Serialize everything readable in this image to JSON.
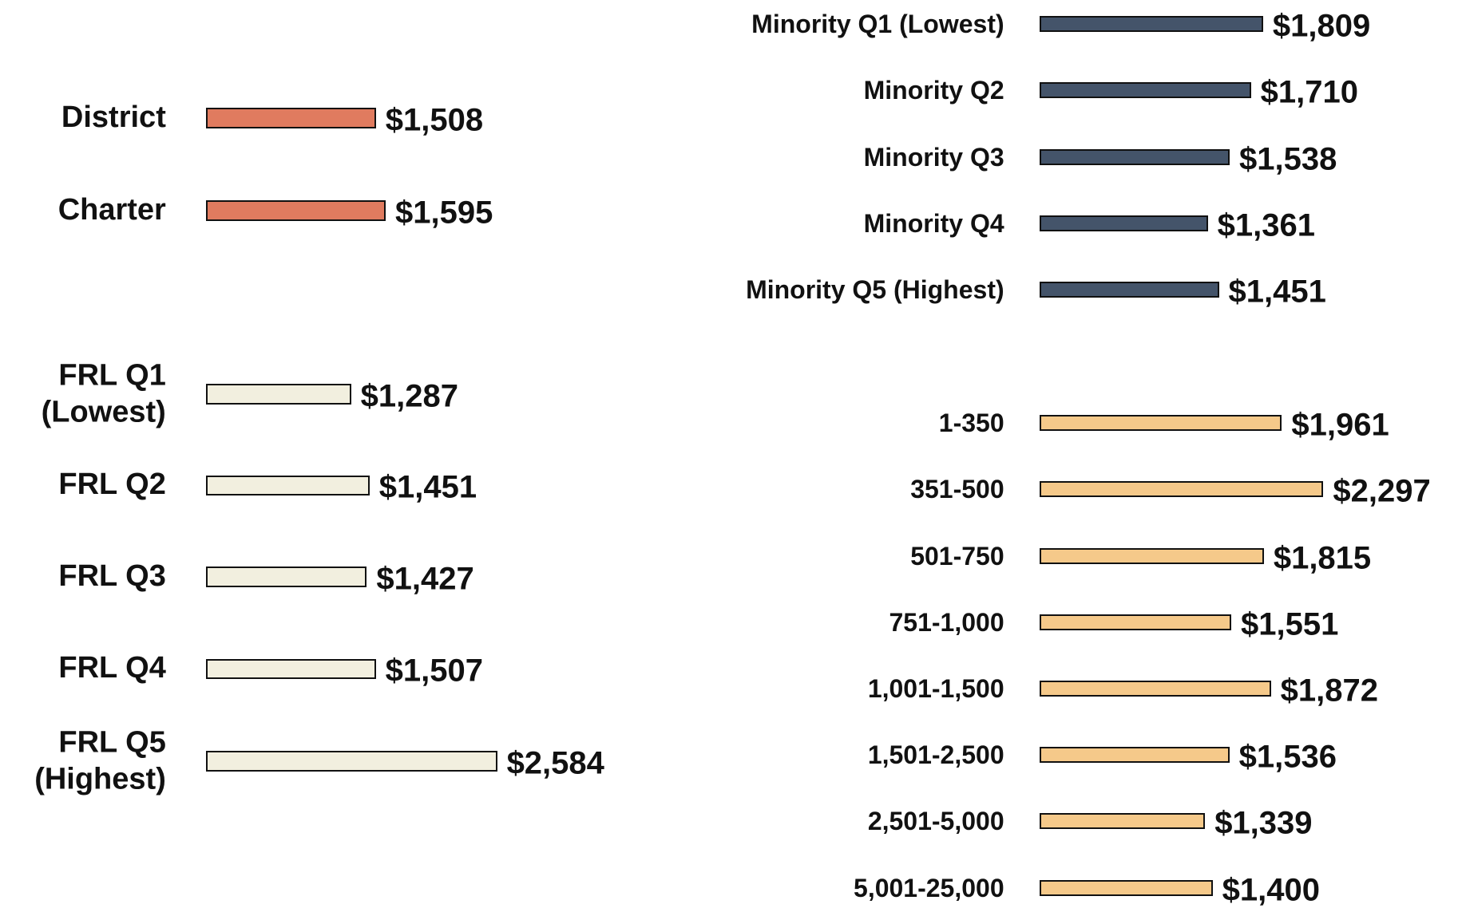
{
  "chart_data": [
    {
      "type": "bar",
      "categories": [
        "District",
        "Charter"
      ],
      "values": [
        1508,
        1595
      ],
      "value_labels": [
        "$1,508",
        "$1,595"
      ],
      "color": "#e07b5f"
    },
    {
      "type": "bar",
      "categories": [
        "FRL Q1 (Lowest)",
        "FRL Q2",
        "FRL Q3",
        "FRL Q4",
        "FRL Q5 (Highest)"
      ],
      "values": [
        1287,
        1451,
        1427,
        1507,
        2584
      ],
      "value_labels": [
        "$1,287",
        "$1,451",
        "$1,427",
        "$1,507",
        "$2,584"
      ],
      "color": "#f2efdf"
    },
    {
      "type": "bar",
      "categories": [
        "Minority Q1 (Lowest)",
        "Minority Q2",
        "Minority Q3",
        "Minority Q4",
        "Minority Q5 (Highest)"
      ],
      "values": [
        1809,
        1710,
        1538,
        1361,
        1451
      ],
      "value_labels": [
        "$1,809",
        "$1,710",
        "$1,538",
        "$1,361",
        "$1,451"
      ],
      "color": "#44546a"
    },
    {
      "type": "bar",
      "categories": [
        "1-350",
        "351-500",
        "501-750",
        "751-1,000",
        "1,001-1,500",
        "1,501-2,500",
        "2,501-5,000",
        "5,001-25,000"
      ],
      "values": [
        1961,
        2297,
        1815,
        1551,
        1872,
        1536,
        1339,
        1400
      ],
      "value_labels": [
        "$1,961",
        "$2,297",
        "$1,815",
        "$1,551",
        "$1,872",
        "$1,536",
        "$1,339",
        "$1,400"
      ],
      "color": "#f5c98a"
    }
  ]
}
